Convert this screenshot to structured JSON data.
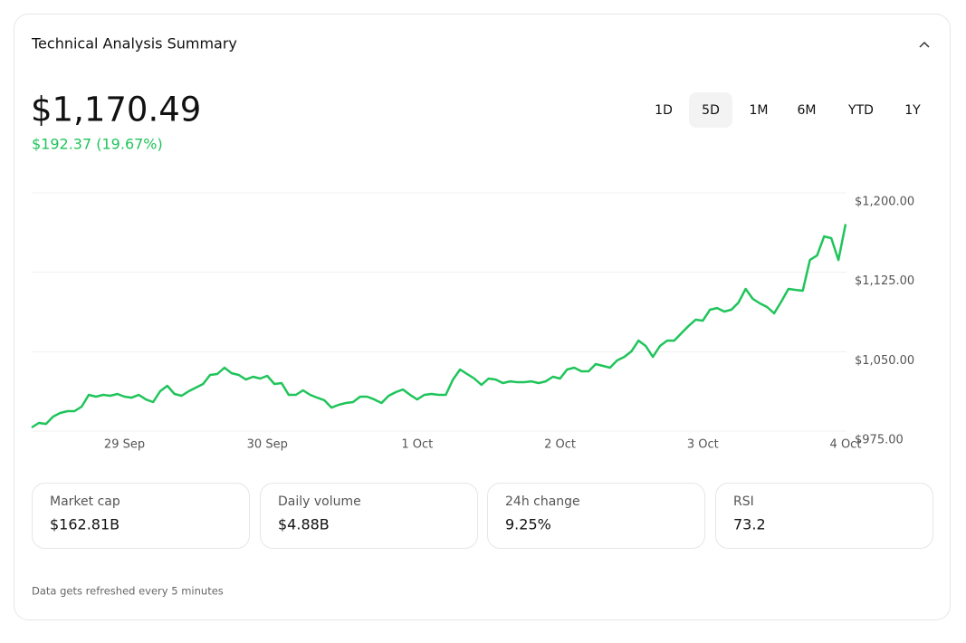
{
  "header": {
    "title": "Technical Analysis Summary"
  },
  "price": "$1,170.49",
  "change": "$192.37 (19.67%)",
  "ranges": [
    "1D",
    "5D",
    "1M",
    "6M",
    "YTD",
    "1Y"
  ],
  "selected_range": 1,
  "chart_data": {
    "type": "line",
    "color": "#1fc45a",
    "grid": true,
    "categories": [
      null,
      null,
      null,
      null,
      null,
      null,
      null,
      null,
      null,
      null,
      null,
      null,
      null,
      "29 Sep",
      null,
      null,
      null,
      null,
      null,
      null,
      null,
      null,
      null,
      null,
      null,
      null,
      null,
      null,
      null,
      null,
      null,
      null,
      null,
      "30 Sep",
      null,
      null,
      null,
      null,
      null,
      null,
      null,
      null,
      null,
      null,
      null,
      null,
      null,
      null,
      null,
      null,
      null,
      null,
      null,
      null,
      "1 Oct",
      null,
      null,
      null,
      null,
      null,
      null,
      null,
      null,
      null,
      null,
      null,
      null,
      null,
      null,
      null,
      null,
      null,
      null,
      null,
      "2 Oct",
      null,
      null,
      null,
      null,
      null,
      null,
      null,
      null,
      null,
      null,
      null,
      null,
      null,
      null,
      null,
      null,
      null,
      null,
      null,
      "3 Oct",
      null,
      null,
      null,
      null,
      null,
      null,
      null,
      null,
      null,
      null,
      null,
      null,
      null,
      null,
      null,
      null,
      null,
      null,
      null,
      "4 Oct"
    ],
    "values": [
      978.4,
      982.7,
      981.8,
      988.7,
      992.1,
      993.8,
      993.8,
      998.1,
      1009.2,
      1007.5,
      1009.2,
      1008.4,
      1010.1,
      1007.5,
      1006.6,
      1009.2,
      1004.9,
      1002.4,
      1012.6,
      1017.8,
      1010.1,
      1008.4,
      1012.6,
      1016.1,
      1019.5,
      1028.0,
      1028.9,
      1034.9,
      1029.7,
      1028.0,
      1023.7,
      1026.3,
      1024.6,
      1027.2,
      1019.5,
      1020.3,
      1009.2,
      1009.2,
      1013.5,
      1009.2,
      1006.6,
      1004.1,
      997.2,
      999.8,
      1001.5,
      1002.4,
      1007.5,
      1007.5,
      1004.9,
      1001.5,
      1008.4,
      1011.8,
      1014.3,
      1009.2,
      1004.9,
      1009.2,
      1010.1,
      1009.2,
      1009.2,
      1023.7,
      1033.2,
      1028.9,
      1024.6,
      1018.6,
      1024.6,
      1023.7,
      1020.3,
      1022.0,
      1021.2,
      1021.2,
      1022.0,
      1020.3,
      1022.0,
      1026.3,
      1024.6,
      1033.2,
      1034.9,
      1031.5,
      1031.5,
      1038.3,
      1036.6,
      1034.9,
      1041.7,
      1045.1,
      1050.3,
      1060.5,
      1055.4,
      1045.1,
      1055.4,
      1060.5,
      1060.5,
      1067.4,
      1074.2,
      1080.2,
      1079.3,
      1089.6,
      1091.3,
      1087.9,
      1089.6,
      1096.4,
      1109.3,
      1099.9,
      1095.6,
      1092.2,
      1086.2,
      1097.3,
      1109.3,
      1108.4,
      1107.6,
      1136.6,
      1140.9,
      1158.9,
      1157.2,
      1136.6,
      1170.49
    ],
    "ylim": [
      975,
      1200
    ],
    "yticks": [
      {
        "value": 975,
        "label": "$975.00"
      },
      {
        "value": 1050,
        "label": "$1,050.00"
      },
      {
        "value": 1125,
        "label": "$1,125.00"
      },
      {
        "value": 1200,
        "label": "$1,200.00"
      }
    ]
  },
  "stats": [
    {
      "label": "Market cap",
      "value": "$162.81B"
    },
    {
      "label": "Daily volume",
      "value": "$4.88B"
    },
    {
      "label": "24h change",
      "value": "9.25%"
    },
    {
      "label": "RSI",
      "value": "73.2"
    }
  ],
  "footer": "Data gets refreshed every 5 minutes"
}
